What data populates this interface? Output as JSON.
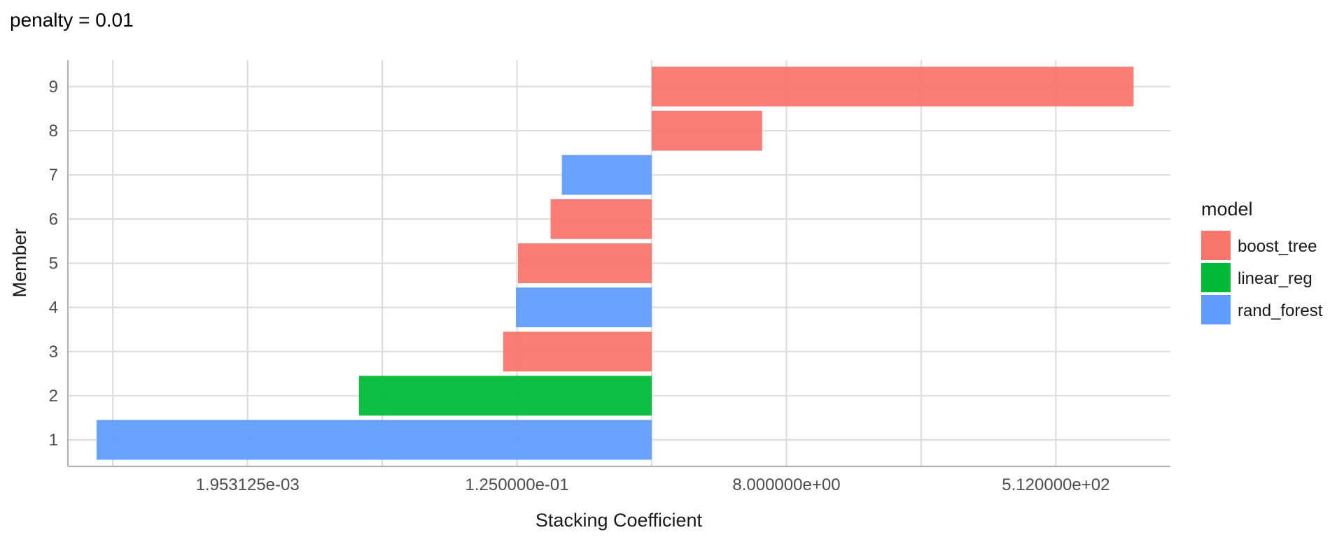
{
  "chart_data": {
    "type": "bar",
    "orientation": "horizontal",
    "title": "penalty = 0.01",
    "xlabel": "Stacking Coefficient",
    "ylabel": "Member",
    "x_scale": "log2",
    "xlim": [
      0.000122,
      3000
    ],
    "x_ticks": [
      {
        "value": 0.001953125,
        "label": "1.953125e-03"
      },
      {
        "value": 0.125,
        "label": "1.250000e-01"
      },
      {
        "value": 8,
        "label": "8.000000e+00"
      },
      {
        "value": 512,
        "label": "5.120000e+02"
      }
    ],
    "y_ticks": [
      "1",
      "2",
      "3",
      "4",
      "5",
      "6",
      "7",
      "8",
      "9"
    ],
    "grid": true,
    "bar_base": 1,
    "bars": [
      {
        "member": "1",
        "model": "rand_forest",
        "value": 0.00019
      },
      {
        "member": "2",
        "model": "linear_reg",
        "value": 0.0109
      },
      {
        "member": "3",
        "model": "boost_tree",
        "value": 0.101
      },
      {
        "member": "4",
        "model": "rand_forest",
        "value": 0.123
      },
      {
        "member": "5",
        "model": "boost_tree",
        "value": 0.127
      },
      {
        "member": "6",
        "model": "boost_tree",
        "value": 0.21
      },
      {
        "member": "7",
        "model": "rand_forest",
        "value": 0.25
      },
      {
        "member": "8",
        "model": "boost_tree",
        "value": 5.5
      },
      {
        "member": "9",
        "model": "boost_tree",
        "value": 1700
      }
    ],
    "legend": {
      "title": "model",
      "placement": "right",
      "entries": [
        {
          "label": "boost_tree",
          "color": "#F8766D"
        },
        {
          "label": "linear_reg",
          "color": "#00BA38"
        },
        {
          "label": "rand_forest",
          "color": "#619CFF"
        }
      ]
    }
  }
}
